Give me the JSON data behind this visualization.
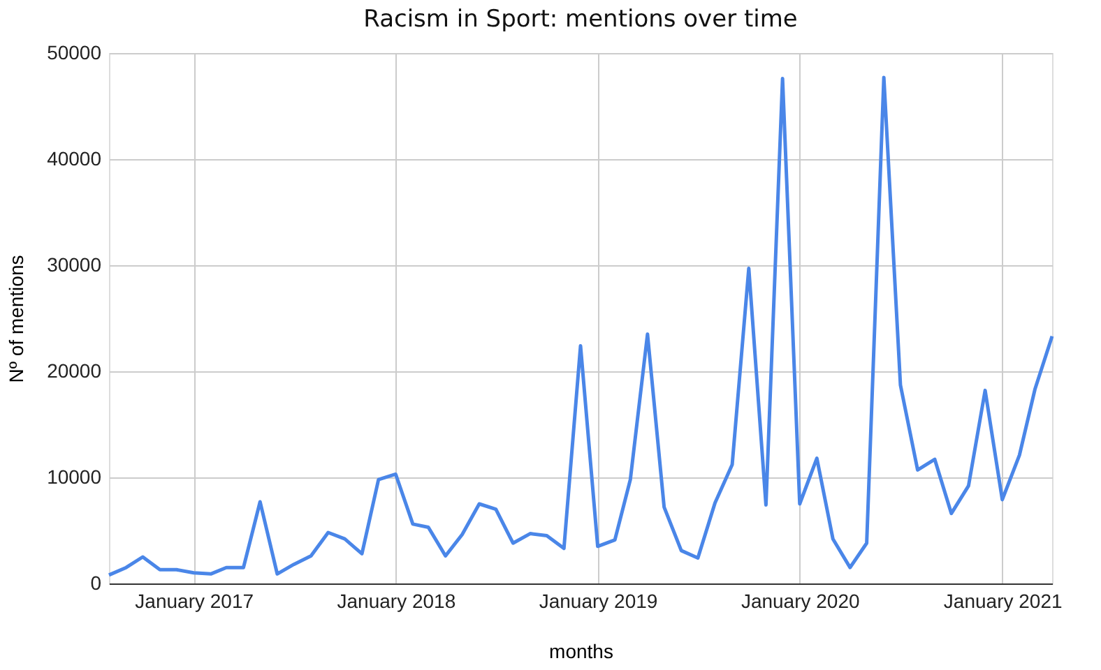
{
  "chart_data": {
    "type": "line",
    "title": "Racism in Sport: mentions over time",
    "xlabel": "months",
    "ylabel": "Nº of mentions",
    "x": [
      "2016-08",
      "2016-09",
      "2016-10",
      "2016-11",
      "2016-12",
      "2017-01",
      "2017-02",
      "2017-03",
      "2017-04",
      "2017-05",
      "2017-06",
      "2017-07",
      "2017-08",
      "2017-09",
      "2017-10",
      "2017-11",
      "2017-12",
      "2018-01",
      "2018-02",
      "2018-03",
      "2018-04",
      "2018-05",
      "2018-06",
      "2018-07",
      "2018-08",
      "2018-09",
      "2018-10",
      "2018-11",
      "2018-12",
      "2019-01",
      "2019-02",
      "2019-03",
      "2019-04",
      "2019-05",
      "2019-06",
      "2019-07",
      "2019-08",
      "2019-09",
      "2019-10",
      "2019-11",
      "2019-12",
      "2020-01",
      "2020-02",
      "2020-03",
      "2020-04",
      "2020-05",
      "2020-06",
      "2020-07",
      "2020-08",
      "2020-09",
      "2020-10",
      "2020-11",
      "2020-12",
      "2021-01",
      "2021-02",
      "2021-03",
      "2021-04"
    ],
    "series": [
      {
        "color": "#4a86e8",
        "values": [
          800,
          1500,
          2500,
          1300,
          1300,
          1000,
          900,
          1500,
          1500,
          7700,
          900,
          1800,
          2600,
          4800,
          4200,
          2800,
          9800,
          10300,
          5600,
          5300,
          2600,
          4600,
          7500,
          7000,
          3800,
          4700,
          4500,
          3300,
          22400,
          3500,
          4100,
          9800,
          23500,
          7200,
          3100,
          2400,
          7600,
          11200,
          29700,
          7400,
          47600,
          7500,
          11800,
          4200,
          1500,
          3800,
          47700,
          18700,
          10700,
          11700,
          6600,
          9200,
          18200,
          7900,
          12100,
          18300,
          23300
        ]
      }
    ],
    "xlim": [
      "2016-08",
      "2021-04"
    ],
    "xticks": [
      {
        "value": "2017-01",
        "label": "January 2017"
      },
      {
        "value": "2018-01",
        "label": "January 2018"
      },
      {
        "value": "2019-01",
        "label": "January 2019"
      },
      {
        "value": "2020-01",
        "label": "January 2020"
      },
      {
        "value": "2021-01",
        "label": "January 2021"
      }
    ],
    "ylim": [
      0,
      50000
    ],
    "yticks": [
      0,
      10000,
      20000,
      30000,
      40000,
      50000
    ],
    "grid": true,
    "marker": "none",
    "line_style": "solid",
    "legend": false
  }
}
